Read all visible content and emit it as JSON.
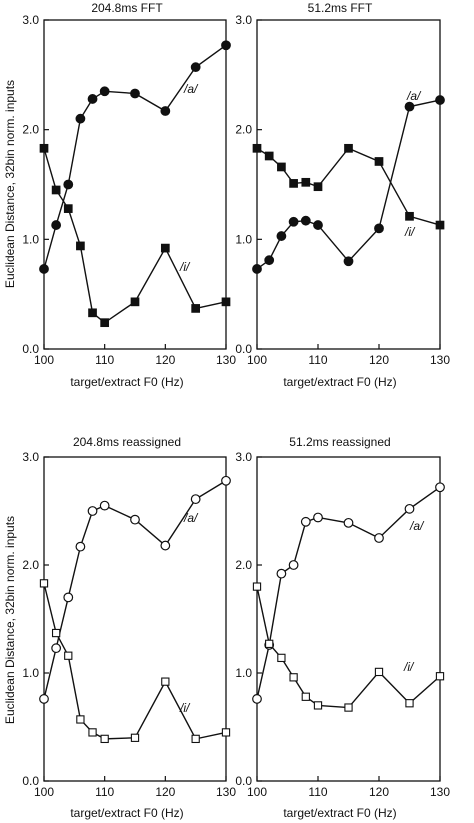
{
  "ylabel": "Euclidean Distance, 32bin norm. inputs",
  "chart_data": [
    {
      "type": "line",
      "title": "204.8ms FFT",
      "xlabel": "target/extract F0 (Hz)",
      "xlim": [
        100,
        130
      ],
      "ylim": [
        0,
        3
      ],
      "x_ticks": [
        "100",
        "110",
        "120",
        "130"
      ],
      "y_ticks": [
        "0.0",
        "1.0",
        "2.0",
        "3.0"
      ],
      "marker_fill": "filled",
      "series": [
        {
          "name": "/a/",
          "marker": "circle",
          "x": [
            100,
            102,
            104,
            106,
            108,
            110,
            115,
            120,
            125,
            130
          ],
          "y": [
            0.73,
            1.13,
            1.5,
            2.1,
            2.28,
            2.35,
            2.33,
            2.17,
            2.57,
            2.77
          ]
        },
        {
          "name": "/i/",
          "marker": "square",
          "x": [
            100,
            102,
            104,
            106,
            108,
            110,
            115,
            120,
            125,
            130
          ],
          "y": [
            1.83,
            1.45,
            1.28,
            0.94,
            0.33,
            0.24,
            0.43,
            0.92,
            0.37,
            0.43
          ]
        }
      ]
    },
    {
      "type": "line",
      "title": "51.2ms FFT",
      "xlabel": "target/extract F0 (Hz)",
      "xlim": [
        100,
        130
      ],
      "ylim": [
        0,
        3
      ],
      "x_ticks": [
        "100",
        "110",
        "120",
        "130"
      ],
      "y_ticks": [
        "0.0",
        "1.0",
        "2.0",
        "3.0"
      ],
      "marker_fill": "filled",
      "series": [
        {
          "name": "/a/",
          "marker": "circle",
          "x": [
            100,
            102,
            104,
            106,
            108,
            110,
            115,
            120,
            125,
            130
          ],
          "y": [
            0.73,
            0.81,
            1.03,
            1.16,
            1.17,
            1.13,
            0.8,
            1.1,
            2.21,
            2.27
          ]
        },
        {
          "name": "/i/",
          "marker": "square",
          "x": [
            100,
            102,
            104,
            106,
            108,
            110,
            115,
            120,
            125,
            130
          ],
          "y": [
            1.83,
            1.76,
            1.66,
            1.51,
            1.52,
            1.48,
            1.83,
            1.71,
            1.21,
            1.13
          ]
        }
      ]
    },
    {
      "type": "line",
      "title": "204.8ms reassigned",
      "xlabel": "target/extract F0 (Hz)",
      "xlim": [
        100,
        130
      ],
      "ylim": [
        0,
        3
      ],
      "x_ticks": [
        "100",
        "110",
        "120",
        "130"
      ],
      "y_ticks": [
        "0.0",
        "1.0",
        "2.0",
        "3.0"
      ],
      "marker_fill": "open",
      "series": [
        {
          "name": "/a/",
          "marker": "circle",
          "x": [
            100,
            102,
            104,
            106,
            108,
            110,
            115,
            120,
            125,
            130
          ],
          "y": [
            0.76,
            1.23,
            1.7,
            2.17,
            2.5,
            2.55,
            2.42,
            2.18,
            2.61,
            2.78
          ]
        },
        {
          "name": "/i/",
          "marker": "square",
          "x": [
            100,
            102,
            104,
            106,
            108,
            110,
            115,
            120,
            125,
            130
          ],
          "y": [
            1.83,
            1.37,
            1.16,
            0.57,
            0.45,
            0.39,
            0.4,
            0.92,
            0.39,
            0.45
          ]
        }
      ]
    },
    {
      "type": "line",
      "title": "51.2ms reassigned",
      "xlabel": "target/extract F0 (Hz)",
      "xlim": [
        100,
        130
      ],
      "ylim": [
        0,
        3
      ],
      "x_ticks": [
        "100",
        "110",
        "120",
        "130"
      ],
      "y_ticks": [
        "0.0",
        "1.0",
        "2.0",
        "3.0"
      ],
      "marker_fill": "open",
      "series": [
        {
          "name": "/a/",
          "marker": "circle",
          "x": [
            100,
            102,
            104,
            106,
            108,
            110,
            115,
            120,
            125,
            130
          ],
          "y": [
            0.76,
            1.26,
            1.92,
            2.0,
            2.4,
            2.44,
            2.39,
            2.25,
            2.52,
            2.72
          ]
        },
        {
          "name": "/i/",
          "marker": "square",
          "x": [
            100,
            102,
            104,
            106,
            108,
            110,
            115,
            120,
            125,
            130
          ],
          "y": [
            1.8,
            1.27,
            1.14,
            0.96,
            0.78,
            0.7,
            0.68,
            1.01,
            0.72,
            0.97
          ]
        }
      ]
    }
  ]
}
